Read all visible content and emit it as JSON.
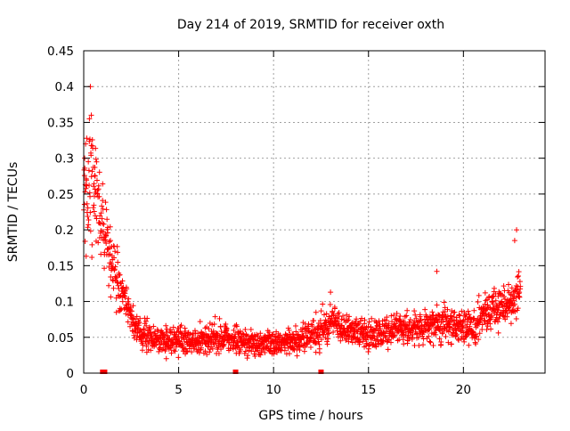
{
  "chart_data": {
    "type": "scatter",
    "title": "Day 214 of 2019, SRMTID for receiver oxth",
    "xlabel": "GPS time / hours",
    "ylabel": "SRMTID / TECUs",
    "xlim": [
      0,
      24.3
    ],
    "ylim": [
      0,
      0.45
    ],
    "x_ticks": [
      0,
      5,
      10,
      15,
      20
    ],
    "x_tick_labels": [
      "0",
      "5",
      "10",
      "15",
      "20"
    ],
    "y_ticks": [
      0,
      0.05,
      0.1,
      0.15,
      0.2,
      0.25,
      0.3,
      0.35,
      0.4,
      0.45
    ],
    "y_tick_labels": [
      "0",
      "0.05",
      "0.1",
      "0.15",
      "0.2",
      "0.25",
      "0.3",
      "0.35",
      "0.4",
      "0.45"
    ],
    "grid": true,
    "marker": "plus",
    "color": "#ff0000",
    "gap_markers": [
      1.0,
      1.1,
      8.0,
      12.5
    ],
    "envelope": {
      "description_hours": [
        0,
        0.3,
        0.6,
        1.0,
        1.3,
        1.6,
        2.0,
        2.5,
        3.0,
        4.0,
        6.0,
        7.0,
        8.0,
        9.0,
        10.0,
        11.0,
        12.0,
        12.5,
        13.0,
        14.0,
        15.0,
        16.0,
        17.0,
        18.0,
        19.0,
        20.0,
        20.5,
        21.0,
        21.5,
        22.0,
        22.5,
        23.0
      ],
      "median": [
        0.25,
        0.26,
        0.24,
        0.2,
        0.17,
        0.15,
        0.11,
        0.08,
        0.055,
        0.045,
        0.045,
        0.05,
        0.045,
        0.04,
        0.04,
        0.045,
        0.05,
        0.065,
        0.07,
        0.06,
        0.055,
        0.06,
        0.06,
        0.065,
        0.07,
        0.065,
        0.06,
        0.08,
        0.09,
        0.09,
        0.095,
        0.12
      ],
      "spread": [
        0.07,
        0.08,
        0.07,
        0.06,
        0.05,
        0.04,
        0.03,
        0.025,
        0.02,
        0.018,
        0.018,
        0.02,
        0.02,
        0.017,
        0.017,
        0.018,
        0.02,
        0.025,
        0.025,
        0.02,
        0.02,
        0.02,
        0.02,
        0.022,
        0.025,
        0.025,
        0.025,
        0.025,
        0.025,
        0.025,
        0.03,
        0.035
      ],
      "n_points": 1900
    },
    "outliers": [
      {
        "x": 0.35,
        "y": 0.4
      },
      {
        "x": 0.4,
        "y": 0.36
      },
      {
        "x": 0.3,
        "y": 0.355
      },
      {
        "x": 0.1,
        "y": 0.32
      },
      {
        "x": 0.05,
        "y": 0.3
      },
      {
        "x": 0.6,
        "y": 0.275
      },
      {
        "x": 22.8,
        "y": 0.2
      },
      {
        "x": 22.7,
        "y": 0.185
      },
      {
        "x": 18.6,
        "y": 0.142
      },
      {
        "x": 13.0,
        "y": 0.113
      }
    ]
  }
}
